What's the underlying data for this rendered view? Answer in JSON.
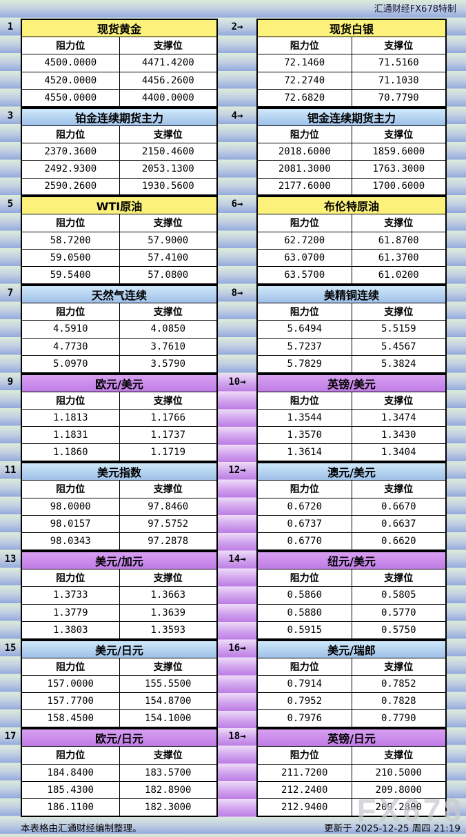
{
  "header": {
    "credit": "汇通财经FX678特制"
  },
  "labels": {
    "resistance": "阻力位",
    "support": "支撑位"
  },
  "colors": {
    "header_yellow": "#fbf17b",
    "header_blue": "#b7d4f1",
    "header_purple": "#c98ae9",
    "gutter_purple": "#bc7ce4",
    "band_green": "#dcecda",
    "band_blue": "#93a9dd"
  },
  "chart_data": [
    {
      "type": "table",
      "num": "1",
      "title": "现货黄金",
      "header_style": "yellow",
      "zone": "commodity",
      "columns": [
        "阻力位",
        "支撑位"
      ],
      "rows": [
        [
          "4500.0000",
          "4471.4200"
        ],
        [
          "4520.0000",
          "4456.2600"
        ],
        [
          "4550.0000",
          "4400.0000"
        ]
      ]
    },
    {
      "type": "table",
      "num": "2→",
      "title": "现货白银",
      "header_style": "yellow",
      "zone": "commodity",
      "columns": [
        "阻力位",
        "支撑位"
      ],
      "rows": [
        [
          "72.1460",
          "71.5160"
        ],
        [
          "72.2740",
          "71.1030"
        ],
        [
          "72.6820",
          "70.7790"
        ]
      ]
    },
    {
      "type": "table",
      "num": "3",
      "title": "铂金连续期货主力",
      "header_style": "blue",
      "zone": "commodity",
      "columns": [
        "阻力位",
        "支撑位"
      ],
      "rows": [
        [
          "2370.3600",
          "2150.4600"
        ],
        [
          "2492.9300",
          "2053.1300"
        ],
        [
          "2590.2600",
          "1930.5600"
        ]
      ]
    },
    {
      "type": "table",
      "num": "4→",
      "title": "钯金连续期货主力",
      "header_style": "blue",
      "zone": "commodity",
      "columns": [
        "阻力位",
        "支撑位"
      ],
      "rows": [
        [
          "2018.6000",
          "1859.6000"
        ],
        [
          "2081.3000",
          "1763.3000"
        ],
        [
          "2177.6000",
          "1700.6000"
        ]
      ]
    },
    {
      "type": "table",
      "num": "5",
      "title": "WTI原油",
      "header_style": "yellow",
      "zone": "commodity",
      "columns": [
        "阻力位",
        "支撑位"
      ],
      "rows": [
        [
          "58.7200",
          "57.9000"
        ],
        [
          "59.0500",
          "57.4100"
        ],
        [
          "59.5400",
          "57.0800"
        ]
      ]
    },
    {
      "type": "table",
      "num": "6→",
      "title": "布伦特原油",
      "header_style": "yellow",
      "zone": "commodity",
      "columns": [
        "阻力位",
        "支撑位"
      ],
      "rows": [
        [
          "62.7200",
          "61.8700"
        ],
        [
          "63.0700",
          "61.3700"
        ],
        [
          "63.5700",
          "61.0200"
        ]
      ]
    },
    {
      "type": "table",
      "num": "7",
      "title": "天然气连续",
      "header_style": "blue",
      "zone": "commodity",
      "columns": [
        "阻力位",
        "支撑位"
      ],
      "rows": [
        [
          "4.5910",
          "4.0850"
        ],
        [
          "4.7730",
          "3.7610"
        ],
        [
          "5.0970",
          "3.5790"
        ]
      ]
    },
    {
      "type": "table",
      "num": "8→",
      "title": "美精铜连续",
      "header_style": "blue",
      "zone": "commodity",
      "columns": [
        "阻力位",
        "支撑位"
      ],
      "rows": [
        [
          "5.6494",
          "5.5159"
        ],
        [
          "5.7237",
          "5.4567"
        ],
        [
          "5.7829",
          "5.3824"
        ]
      ]
    },
    {
      "type": "table",
      "num": "9",
      "title": "欧元/美元",
      "header_style": "purple",
      "zone": "fx",
      "columns": [
        "阻力位",
        "支撑位"
      ],
      "rows": [
        [
          "1.1813",
          "1.1766"
        ],
        [
          "1.1831",
          "1.1737"
        ],
        [
          "1.1860",
          "1.1719"
        ]
      ]
    },
    {
      "type": "table",
      "num": "10→",
      "title": "英镑/美元",
      "header_style": "purple",
      "zone": "fx",
      "columns": [
        "阻力位",
        "支撑位"
      ],
      "rows": [
        [
          "1.3544",
          "1.3474"
        ],
        [
          "1.3570",
          "1.3430"
        ],
        [
          "1.3614",
          "1.3404"
        ]
      ]
    },
    {
      "type": "table",
      "num": "11",
      "title": "美元指数",
      "header_style": "blue",
      "zone": "fx",
      "columns": [
        "阻力位",
        "支撑位"
      ],
      "rows": [
        [
          "98.0000",
          "97.8460"
        ],
        [
          "98.0157",
          "97.5752"
        ],
        [
          "98.0343",
          "97.2878"
        ]
      ]
    },
    {
      "type": "table",
      "num": "12→",
      "title": "澳元/美元",
      "header_style": "blue",
      "zone": "fx",
      "columns": [
        "阻力位",
        "支撑位"
      ],
      "rows": [
        [
          "0.6720",
          "0.6670"
        ],
        [
          "0.6737",
          "0.6637"
        ],
        [
          "0.6770",
          "0.6620"
        ]
      ]
    },
    {
      "type": "table",
      "num": "13",
      "title": "美元/加元",
      "header_style": "purple",
      "zone": "fx",
      "columns": [
        "阻力位",
        "支撑位"
      ],
      "rows": [
        [
          "1.3733",
          "1.3663"
        ],
        [
          "1.3779",
          "1.3639"
        ],
        [
          "1.3803",
          "1.3593"
        ]
      ]
    },
    {
      "type": "table",
      "num": "14→",
      "title": "纽元/美元",
      "header_style": "purple",
      "zone": "fx",
      "columns": [
        "阻力位",
        "支撑位"
      ],
      "rows": [
        [
          "0.5860",
          "0.5805"
        ],
        [
          "0.5880",
          "0.5770"
        ],
        [
          "0.5915",
          "0.5750"
        ]
      ]
    },
    {
      "type": "table",
      "num": "15",
      "title": "美元/日元",
      "header_style": "blue",
      "zone": "fx",
      "columns": [
        "阻力位",
        "支撑位"
      ],
      "rows": [
        [
          "157.0000",
          "155.5500"
        ],
        [
          "157.7700",
          "154.8700"
        ],
        [
          "158.4500",
          "154.1000"
        ]
      ]
    },
    {
      "type": "table",
      "num": "16→",
      "title": "美元/瑞郎",
      "header_style": "blue",
      "zone": "fx",
      "columns": [
        "阻力位",
        "支撑位"
      ],
      "rows": [
        [
          "0.7914",
          "0.7852"
        ],
        [
          "0.7952",
          "0.7828"
        ],
        [
          "0.7976",
          "0.7790"
        ]
      ]
    },
    {
      "type": "table",
      "num": "17",
      "title": "欧元/日元",
      "header_style": "purple",
      "zone": "fx",
      "columns": [
        "阻力位",
        "支撑位"
      ],
      "rows": [
        [
          "184.8400",
          "183.5700"
        ],
        [
          "185.4300",
          "182.8900"
        ],
        [
          "186.1100",
          "182.3000"
        ]
      ]
    },
    {
      "type": "table",
      "num": "18→",
      "title": "英镑/日元",
      "header_style": "purple",
      "zone": "fx",
      "columns": [
        "阻力位",
        "支撑位"
      ],
      "rows": [
        [
          "211.7200",
          "210.5000"
        ],
        [
          "212.2400",
          "209.8000"
        ],
        [
          "212.9400",
          "209.2800"
        ]
      ]
    }
  ],
  "footer": {
    "left": "本表格由汇通财经编制整理。",
    "right": "更新于 2025-12-25 周四 21:19",
    "watermark": "FX678"
  }
}
